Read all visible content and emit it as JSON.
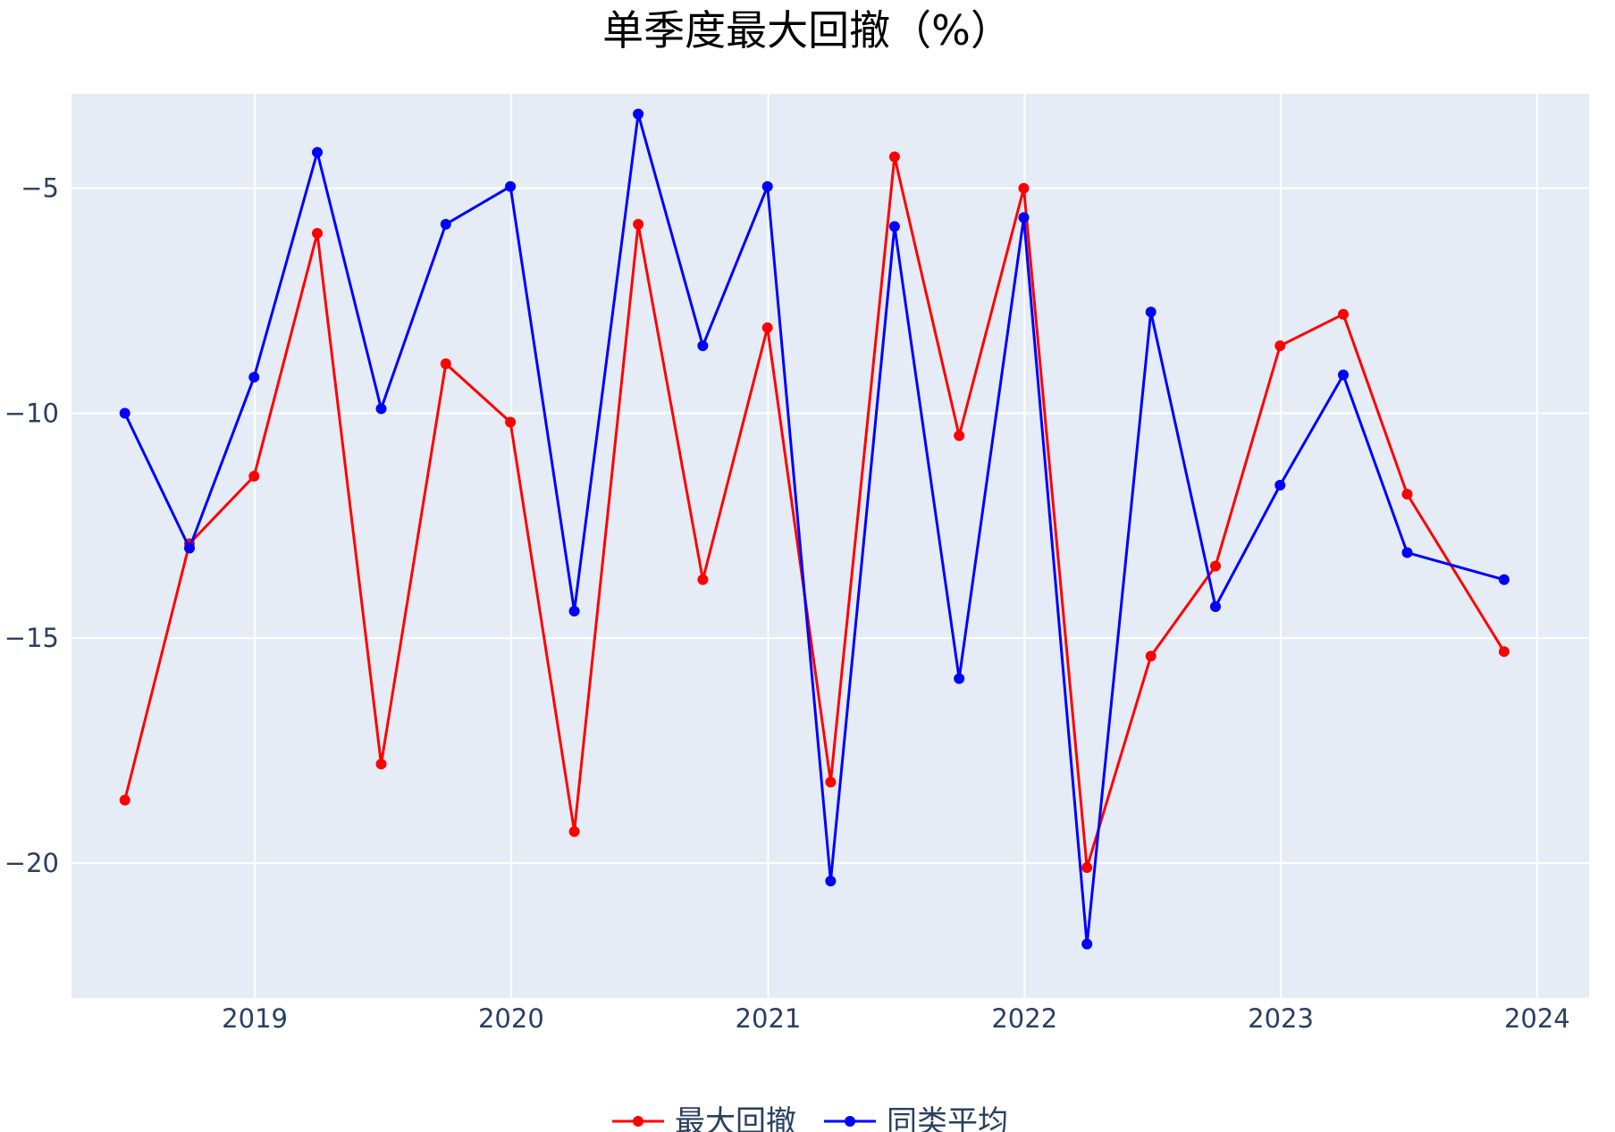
{
  "chart_data": {
    "type": "line",
    "title": "单季度最大回撤（%）",
    "xlabel": "",
    "ylabel": "",
    "x_ticks": [
      "2019",
      "2020",
      "2021",
      "2022",
      "2023",
      "2024"
    ],
    "y_ticks": [
      "−5",
      "−10",
      "−15",
      "−20"
    ],
    "y_tick_values": [
      -5,
      -10,
      -15,
      -20
    ],
    "ylim": [
      -23.0,
      -2.9
    ],
    "xlim": [
      "2018-04-15",
      "2024-03-15"
    ],
    "grid": true,
    "legend_position": "bottom-center",
    "x": [
      "2018-06-30",
      "2018-09-30",
      "2018-12-31",
      "2019-03-31",
      "2019-06-30",
      "2019-09-30",
      "2019-12-31",
      "2020-03-31",
      "2020-06-30",
      "2020-09-30",
      "2020-12-31",
      "2021-03-31",
      "2021-06-30",
      "2021-09-30",
      "2021-12-31",
      "2022-03-31",
      "2022-06-30",
      "2022-09-30",
      "2022-12-31",
      "2023-03-31",
      "2023-06-30",
      "2023-11-15"
    ],
    "series": [
      {
        "name": "最大回撤",
        "color": "#ff0000",
        "values": [
          -18.6,
          -12.9,
          -11.4,
          -6.0,
          -17.8,
          -8.9,
          -10.2,
          -19.3,
          -5.8,
          -13.7,
          -8.1,
          -18.2,
          -4.3,
          -10.5,
          -5.0,
          -20.1,
          -15.4,
          -13.4,
          -8.5,
          -7.8,
          -11.8,
          -15.3
        ]
      },
      {
        "name": "同类平均",
        "color": "#0000ff",
        "values": [
          -10.0,
          -13.0,
          -9.2,
          -4.2,
          -9.9,
          -5.8,
          -4.96,
          -14.4,
          -3.35,
          -8.5,
          -4.96,
          -20.4,
          -5.85,
          -15.9,
          -5.65,
          -21.8,
          -7.75,
          -14.3,
          -11.6,
          -9.15,
          -13.1,
          -13.7
        ]
      }
    ]
  }
}
